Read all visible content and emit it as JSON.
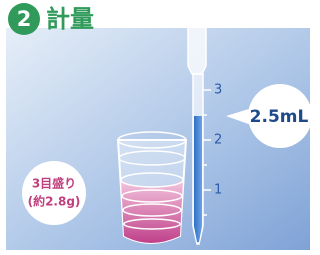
{
  "header": {
    "step": "2",
    "title": "計量"
  },
  "pipette": {
    "scale_labels": [
      "3",
      "2",
      "1"
    ],
    "callout": "2.5mL"
  },
  "cup": {
    "label_lines": [
      "3目盛り",
      "(約2.8g)"
    ]
  }
}
